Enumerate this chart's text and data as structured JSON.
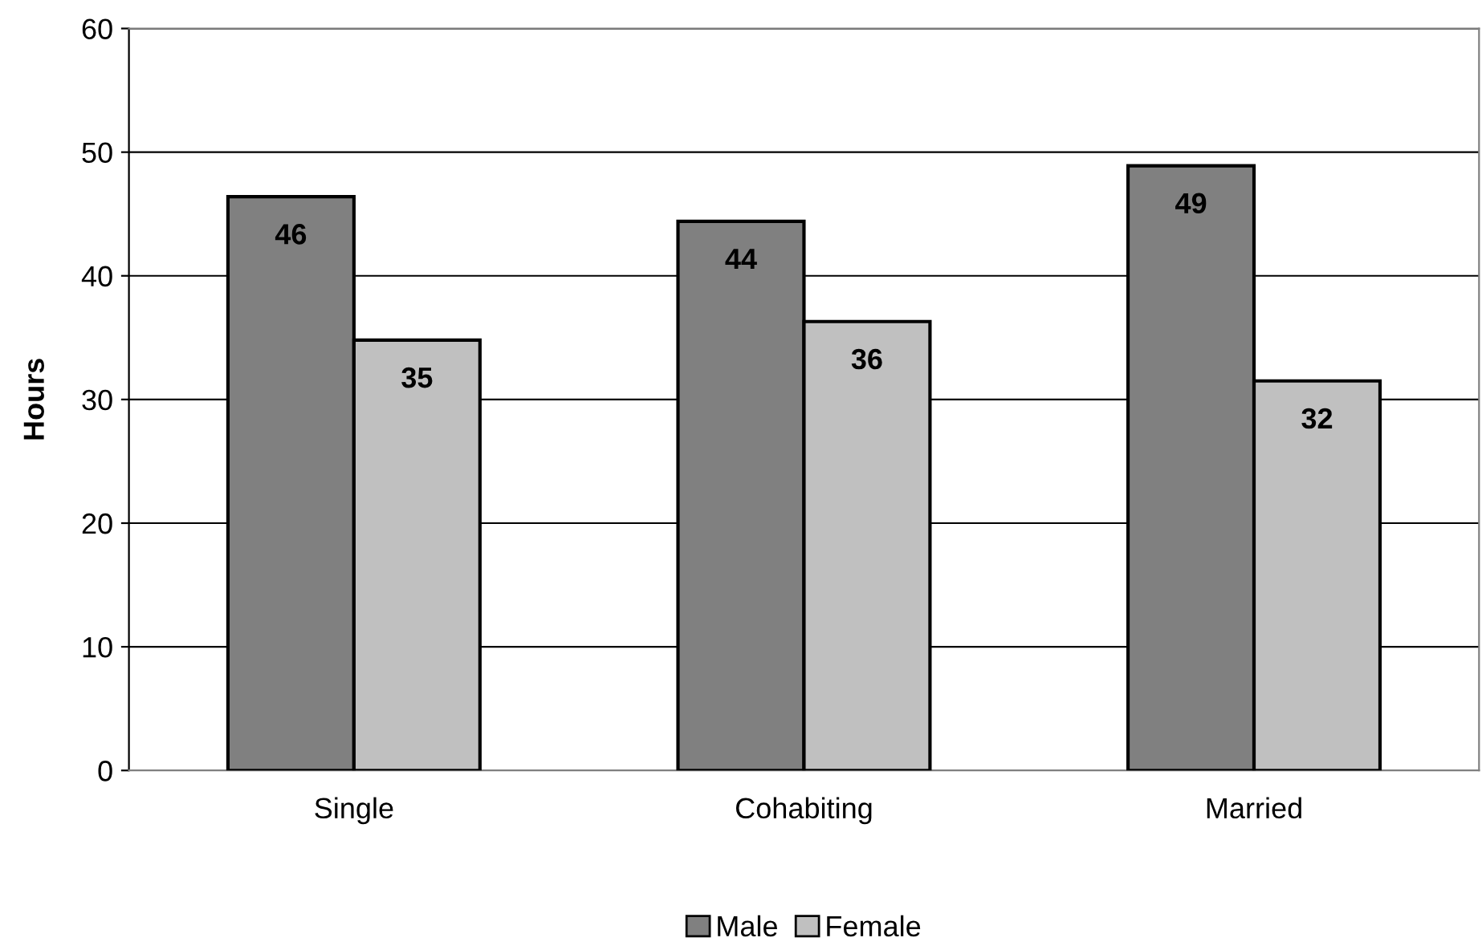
{
  "chart_data": {
    "type": "bar",
    "ylabel": "Hours",
    "categories": [
      "Single",
      "Cohabiting",
      "Married"
    ],
    "series": [
      {
        "name": "Male",
        "color": "#808080",
        "values": [
          46.4,
          44.4,
          48.9
        ],
        "value_labels": [
          "46",
          "44",
          "49"
        ]
      },
      {
        "name": "Female",
        "color": "#c0c0c0",
        "values": [
          34.8,
          36.3,
          31.5
        ],
        "value_labels": [
          "35",
          "36",
          "32"
        ]
      }
    ],
    "ylim": [
      0,
      60
    ],
    "yticks": [
      0,
      10,
      20,
      30,
      40,
      50,
      60
    ],
    "grid": "y",
    "legend": "bottom"
  }
}
